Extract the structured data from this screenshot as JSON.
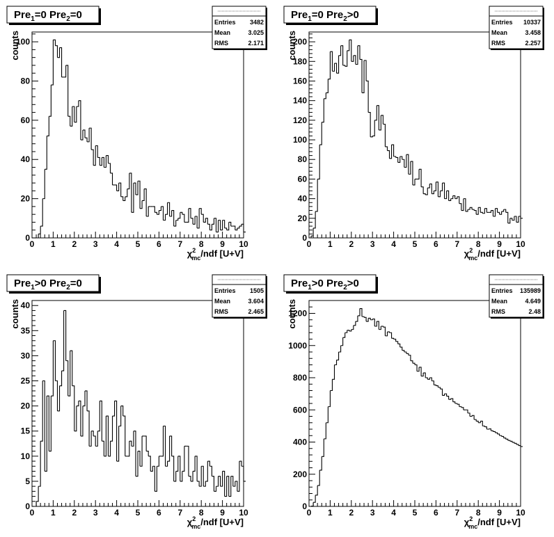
{
  "panels": [
    {
      "title_parts": [
        "Pre",
        "1",
        "=0  Pre",
        "2",
        "=0"
      ],
      "stats": {
        "entries_label": "Entries",
        "entries": "3482",
        "mean_label": "Mean",
        "mean": "3.025",
        "rms_label": "RMS",
        "rms": "2.171"
      },
      "xlabel_parts": [
        "χ",
        "mc",
        "2",
        "/ndf [U+V]"
      ],
      "ylabel": "counts",
      "chart_data": {
        "type": "bar",
        "histogram": true,
        "xlim": [
          0,
          10
        ],
        "ylim": [
          0,
          105
        ],
        "x_ticks": [
          0,
          1,
          2,
          3,
          4,
          5,
          6,
          7,
          8,
          9,
          10
        ],
        "y_ticks": [
          0,
          20,
          40,
          60,
          80,
          100
        ],
        "bin_width": 0.1,
        "values": [
          0,
          0,
          0,
          2,
          6,
          20,
          35,
          52,
          62,
          78,
          101,
          98,
          92,
          97,
          82,
          82,
          88,
          62,
          57,
          67,
          59,
          67,
          70,
          50,
          55,
          51,
          49,
          56,
          45,
          37,
          47,
          41,
          37,
          41,
          36,
          42,
          38,
          33,
          27,
          27,
          24,
          28,
          21,
          19,
          21,
          25,
          33,
          13,
          28,
          22,
          29,
          15,
          19,
          25,
          11,
          16,
          16,
          16,
          13,
          12,
          14,
          16,
          9,
          12,
          18,
          11,
          14,
          6,
          9,
          10,
          13,
          12,
          8,
          8,
          15,
          10,
          7,
          11,
          5,
          15,
          12,
          8,
          10,
          7,
          4,
          7,
          10,
          3,
          9,
          4,
          9,
          5,
          4,
          8,
          6,
          6,
          4,
          5,
          6,
          7,
          3
        ]
      }
    },
    {
      "title_parts": [
        "Pre",
        "1",
        "=0  Pre",
        "2",
        ">0"
      ],
      "stats": {
        "entries_label": "Entries",
        "entries": "10337",
        "mean_label": "Mean",
        "mean": "3.458",
        "rms_label": "RMS",
        "rms": "2.257"
      },
      "xlabel_parts": [
        "χ",
        "mc",
        "2",
        "/ndf [U+V]"
      ],
      "ylabel": "counts",
      "chart_data": {
        "type": "bar",
        "histogram": true,
        "xlim": [
          0,
          10
        ],
        "ylim": [
          0,
          210
        ],
        "x_ticks": [
          0,
          1,
          2,
          3,
          4,
          5,
          6,
          7,
          8,
          9,
          10
        ],
        "y_ticks": [
          0,
          20,
          40,
          60,
          80,
          100,
          120,
          140,
          160,
          180,
          200
        ],
        "bin_width": 0.1,
        "values": [
          0,
          2,
          10,
          27,
          60,
          95,
          118,
          142,
          148,
          162,
          190,
          170,
          178,
          168,
          186,
          196,
          176,
          175,
          191,
          202,
          180,
          186,
          177,
          196,
          182,
          148,
          181,
          160,
          128,
          103,
          104,
          120,
          135,
          110,
          125,
          116,
          93,
          89,
          81,
          95,
          83,
          82,
          77,
          83,
          80,
          72,
          85,
          65,
          78,
          54,
          60,
          60,
          70,
          52,
          45,
          44,
          51,
          55,
          45,
          48,
          57,
          42,
          48,
          56,
          40,
          48,
          38,
          40,
          43,
          40,
          42,
          35,
          28,
          40,
          27,
          29,
          31,
          29,
          28,
          24,
          31,
          26,
          25,
          30,
          26,
          26,
          28,
          22,
          30,
          26,
          24,
          27,
          29,
          26,
          15,
          20,
          18,
          22,
          16,
          22,
          20
        ]
      }
    },
    {
      "title_parts": [
        "Pre",
        "1",
        ">0  Pre",
        "2",
        "=0"
      ],
      "stats": {
        "entries_label": "Entries",
        "entries": "1505",
        "mean_label": "Mean",
        "mean": "3.604",
        "rms_label": "RMS",
        "rms": "2.465"
      },
      "xlabel_parts": [
        "χ",
        "mc",
        "2",
        "/ndf [U+V]"
      ],
      "ylabel": "counts",
      "chart_data": {
        "type": "bar",
        "histogram": true,
        "xlim": [
          0,
          10
        ],
        "ylim": [
          0,
          41
        ],
        "x_ticks": [
          0,
          1,
          2,
          3,
          4,
          5,
          6,
          7,
          8,
          9,
          10
        ],
        "y_ticks": [
          0,
          5,
          10,
          15,
          20,
          25,
          30,
          35,
          40
        ],
        "bin_width": 0.1,
        "values": [
          0,
          0,
          1,
          4,
          13,
          25,
          7,
          22,
          11,
          22,
          33,
          25,
          19,
          24,
          27,
          39,
          29,
          22,
          31,
          24,
          15,
          20,
          21,
          14,
          20,
          23,
          19,
          12,
          15,
          14,
          12,
          15,
          21,
          13,
          10,
          18,
          10,
          13,
          18,
          21,
          9,
          16,
          20,
          18,
          10,
          10,
          13,
          12,
          15,
          6,
          11,
          8,
          14,
          14,
          11,
          10,
          7,
          8,
          3,
          8,
          10,
          10,
          16,
          8,
          9,
          14,
          10,
          5,
          7,
          10,
          5,
          7,
          12,
          12,
          6,
          5,
          7,
          10,
          5,
          4,
          8,
          4,
          5,
          9,
          8,
          6,
          3,
          4,
          6,
          4,
          7,
          2,
          6,
          2,
          6,
          4,
          5,
          3,
          9,
          8,
          5
        ]
      }
    },
    {
      "title_parts": [
        "Pre",
        "1",
        ">0  Pre",
        "2",
        ">0"
      ],
      "stats": {
        "entries_label": "Entries",
        "entries": "135989",
        "mean_label": "Mean",
        "mean": "4.649",
        "rms_label": "RMS",
        "rms": "2.48"
      },
      "xlabel_parts": [
        "χ",
        "mc",
        "2",
        "/ndf [U+V]"
      ],
      "ylabel": "counts",
      "chart_data": {
        "type": "bar",
        "histogram": true,
        "xlim": [
          0,
          10
        ],
        "ylim": [
          0,
          1280
        ],
        "x_ticks": [
          0,
          1,
          2,
          3,
          4,
          5,
          6,
          7,
          8,
          9,
          10
        ],
        "y_ticks": [
          0,
          200,
          400,
          600,
          800,
          1000,
          1200
        ],
        "bin_width": 0.1,
        "values": [
          0,
          2,
          25,
          70,
          130,
          225,
          310,
          420,
          520,
          620,
          720,
          790,
          880,
          910,
          960,
          1000,
          1050,
          1080,
          1095,
          1090,
          1100,
          1125,
          1150,
          1185,
          1230,
          1180,
          1175,
          1150,
          1170,
          1160,
          1165,
          1120,
          1150,
          1100,
          1120,
          1115,
          1060,
          1085,
          1080,
          1045,
          1040,
          1025,
          1010,
          990,
          970,
          960,
          950,
          940,
          905,
          890,
          880,
          840,
          865,
          810,
          830,
          800,
          790,
          800,
          780,
          755,
          750,
          740,
          730,
          690,
          700,
          685,
          665,
          670,
          650,
          640,
          635,
          620,
          615,
          600,
          600,
          580,
          560,
          565,
          540,
          530,
          520,
          530,
          500,
          495,
          480,
          482,
          470,
          465,
          458,
          450,
          440,
          435,
          425,
          418,
          410,
          405,
          398,
          392,
          385,
          378,
          372
        ]
      }
    }
  ]
}
